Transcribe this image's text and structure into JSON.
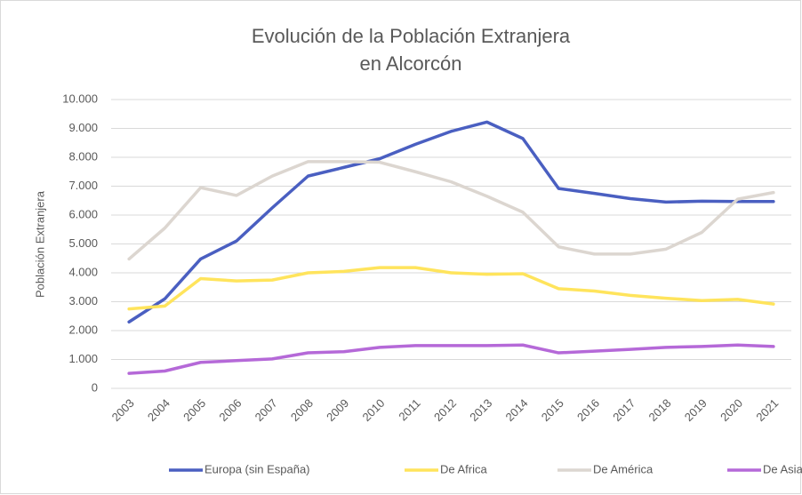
{
  "chart_data": {
    "type": "line",
    "title": [
      "Evolución de la Población Extranjera",
      "en Alcorcón"
    ],
    "y_label": "Población Extranjera",
    "categories": [
      "2003",
      "2004",
      "2005",
      "2006",
      "2007",
      "2008",
      "2009",
      "2010",
      "2011",
      "2012",
      "2013",
      "2014",
      "2015",
      "2016",
      "2017",
      "2018",
      "2019",
      "2020",
      "2021"
    ],
    "series": [
      {
        "name": "Europa (sin España)",
        "color": "#4a5fc1",
        "values": [
          2300,
          3100,
          4480,
          5100,
          6250,
          7350,
          7650,
          7950,
          8450,
          8900,
          9220,
          8650,
          6920,
          6750,
          6570,
          6450,
          6480,
          6470,
          6470
        ]
      },
      {
        "name": "De Africa",
        "color": "#ffe45c",
        "values": [
          2750,
          2850,
          3800,
          3720,
          3750,
          4000,
          4050,
          4180,
          4180,
          4000,
          3950,
          3970,
          3450,
          3370,
          3220,
          3120,
          3040,
          3080,
          2920
        ]
      },
      {
        "name": "De América",
        "color": "#dcd6d0",
        "values": [
          4480,
          5550,
          6950,
          6680,
          7350,
          7850,
          7850,
          7830,
          7500,
          7150,
          6650,
          6100,
          4900,
          4650,
          4650,
          4820,
          5400,
          6550,
          6780
        ]
      },
      {
        "name": "De Asia",
        "color": "#b569d8",
        "values": [
          520,
          600,
          900,
          960,
          1020,
          1230,
          1270,
          1420,
          1480,
          1480,
          1480,
          1500,
          1230,
          1290,
          1350,
          1420,
          1450,
          1500,
          1450
        ]
      }
    ],
    "ylim": [
      0,
      10000
    ],
    "yticks": [
      0,
      {
        "value": 1000,
        "label": "1.000"
      },
      {
        "value": 2000,
        "label": "2.000"
      },
      {
        "value": 3000,
        "label": "3.000"
      },
      {
        "value": 4000,
        "label": "4.000"
      },
      {
        "value": 5000,
        "label": "5.000"
      },
      {
        "value": 6000,
        "label": "6.000"
      },
      {
        "value": 7000,
        "label": "7.000"
      },
      {
        "value": 8000,
        "label": "8.000"
      },
      {
        "value": 9000,
        "label": "9.000"
      },
      {
        "value": 10000,
        "label": "10.000"
      }
    ],
    "grid": true,
    "legend": "bottom"
  }
}
